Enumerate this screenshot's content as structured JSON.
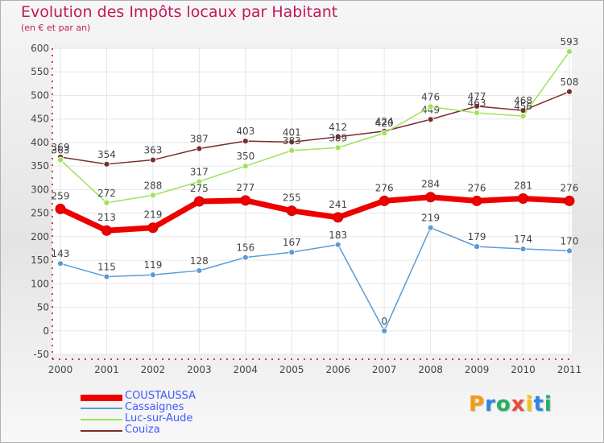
{
  "chart_data": {
    "type": "line",
    "title": "Evolution des Impôts locaux par Habitant",
    "subtitle": "(en € et par an)",
    "xlabel": "",
    "ylabel": "",
    "ylim": [
      -50,
      600
    ],
    "yticks": [
      "-50",
      "0",
      "50",
      "100",
      "150",
      "200",
      "250",
      "300",
      "350",
      "400",
      "450",
      "500",
      "550",
      "600"
    ],
    "categories": [
      "2000",
      "2001",
      "2002",
      "2003",
      "2004",
      "2005",
      "2006",
      "2007",
      "2008",
      "2009",
      "2010",
      "2011"
    ],
    "grid": true,
    "legend_position": "bottom-left",
    "series": [
      {
        "name": "COUSTAUSSA",
        "color": "#ee0000",
        "values": [
          259,
          213,
          219,
          275,
          277,
          255,
          241,
          276,
          284,
          276,
          281,
          276
        ],
        "labels": [
          "259",
          "213",
          "219",
          "275",
          "277",
          "255",
          "241",
          "276",
          "284",
          "276",
          "281",
          "276"
        ]
      },
      {
        "name": "Cassaignes",
        "color": "#5b9bd5",
        "values": [
          143,
          115,
          119,
          128,
          156,
          167,
          183,
          0,
          219,
          179,
          174,
          170
        ],
        "labels": [
          "143",
          "115",
          "119",
          "128",
          "156",
          "167",
          "183",
          "0",
          "219",
          "179",
          "174",
          "170"
        ]
      },
      {
        "name": "Luc-sur-Aude",
        "color": "#9ee25a",
        "values": [
          363,
          272,
          288,
          317,
          350,
          383,
          389,
          420,
          476,
          463,
          456,
          593
        ],
        "labels": [
          "363",
          "272",
          "288",
          "317",
          "350",
          "383",
          "389",
          "420",
          "476",
          "463",
          "456",
          "593"
        ]
      },
      {
        "name": "Couiza",
        "color": "#7b2d2d",
        "values": [
          369,
          354,
          363,
          387,
          403,
          401,
          412,
          424,
          449,
          477,
          468,
          508
        ],
        "labels": [
          "369",
          "354",
          "363",
          "387",
          "403",
          "401",
          "412",
          "424",
          "449",
          "477",
          "468",
          "508"
        ]
      }
    ]
  },
  "logo": {
    "letters": [
      "P",
      "r",
      "o",
      "x",
      "i",
      "t",
      "i"
    ],
    "colors": [
      "#f39c12",
      "#2e86de",
      "#27ae60",
      "#e74c3c",
      "#f1c40f",
      "#2e86de",
      "#27ae60"
    ]
  }
}
